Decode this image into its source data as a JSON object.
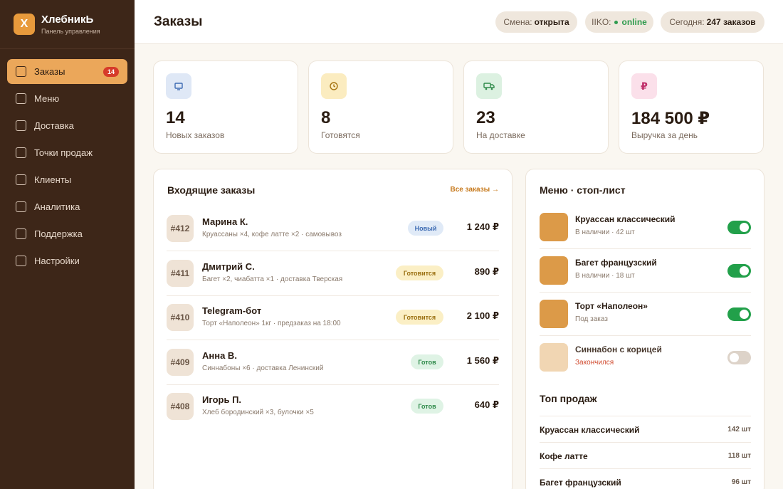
{
  "brand": {
    "logo_letter": "Х",
    "name": "ХлебникЬ",
    "subtitle": "Панель управления"
  },
  "sidebar": {
    "items": [
      {
        "label": "Заказы",
        "active": true,
        "badge": "14"
      },
      {
        "label": "Меню"
      },
      {
        "label": "Доставка"
      },
      {
        "label": "Точки продаж"
      },
      {
        "label": "Клиенты"
      },
      {
        "label": "Аналитика"
      },
      {
        "label": "Поддержка"
      },
      {
        "label": "Настройки"
      }
    ]
  },
  "header": {
    "title": "Заказы",
    "shift_label": "Смена:",
    "shift_value": "открыта",
    "iiko_label": "IIKO:",
    "iiko_value": "online",
    "today_label": "Сегодня:",
    "today_value": "247 заказов"
  },
  "stats": [
    {
      "value": "14",
      "label": "Новых заказов",
      "icon": "tray-icon",
      "color": "#dfe8f6"
    },
    {
      "value": "8",
      "label": "Готовятся",
      "icon": "clock-icon",
      "color": "#fbecc0"
    },
    {
      "value": "23",
      "label": "На доставке",
      "icon": "truck-icon",
      "color": "#dcf1e1"
    },
    {
      "value": "184 500 ₽",
      "label": "Выручка за день",
      "icon": "ruble-icon",
      "color": "#fbe0ea"
    }
  ],
  "orders_panel": {
    "title": "Входящие заказы",
    "all_link": "Все заказы →",
    "orders": [
      {
        "id": "#412",
        "name": "Марина К.",
        "desc": "Круассаны ×4, кофе латте ×2 · самовывоз",
        "status": "Новый",
        "price": "1 240 ₽"
      },
      {
        "id": "#411",
        "name": "Дмитрий С.",
        "desc": "Багет ×2, чиабатта ×1 · доставка Тверская",
        "status": "Готовится",
        "price": "890 ₽"
      },
      {
        "id": "#410",
        "name": "Telegram-бот",
        "desc": "Торт «Наполеон» 1кг · предзаказ на 18:00",
        "status": "Готовится",
        "price": "2 100 ₽"
      },
      {
        "id": "#409",
        "name": "Анна В.",
        "desc": "Синнабоны ×6 · доставка Ленинский",
        "status": "Готов",
        "price": "1 560 ₽"
      },
      {
        "id": "#408",
        "name": "Игорь П.",
        "desc": "Хлеб бородинский ×3, булочки ×5",
        "status": "Готов",
        "price": "640 ₽"
      }
    ]
  },
  "menu_panel": {
    "title": "Меню · стоп-лист",
    "items": [
      {
        "name": "Круассан классический",
        "sub": "В наличии · 42 шт",
        "enabled": true
      },
      {
        "name": "Багет французский",
        "sub": "В наличии · 18 шт",
        "enabled": true
      },
      {
        "name": "Торт «Наполеон»",
        "sub": "Под заказ",
        "enabled": true
      },
      {
        "name": "Синнабон с корицей",
        "sub": "Закончился",
        "enabled": false
      }
    ],
    "top_title": "Топ продаж",
    "top": [
      {
        "name": "Круассан классический",
        "count": "142 шт"
      },
      {
        "name": "Кофе латте",
        "count": "118 шт"
      },
      {
        "name": "Багет французский",
        "count": "96 шт"
      }
    ]
  },
  "colors": {
    "sidebar_bg": "#3d2618",
    "accent": "#eba75a",
    "badge_red": "#d63b2a",
    "toggle_on": "#22a04a"
  }
}
